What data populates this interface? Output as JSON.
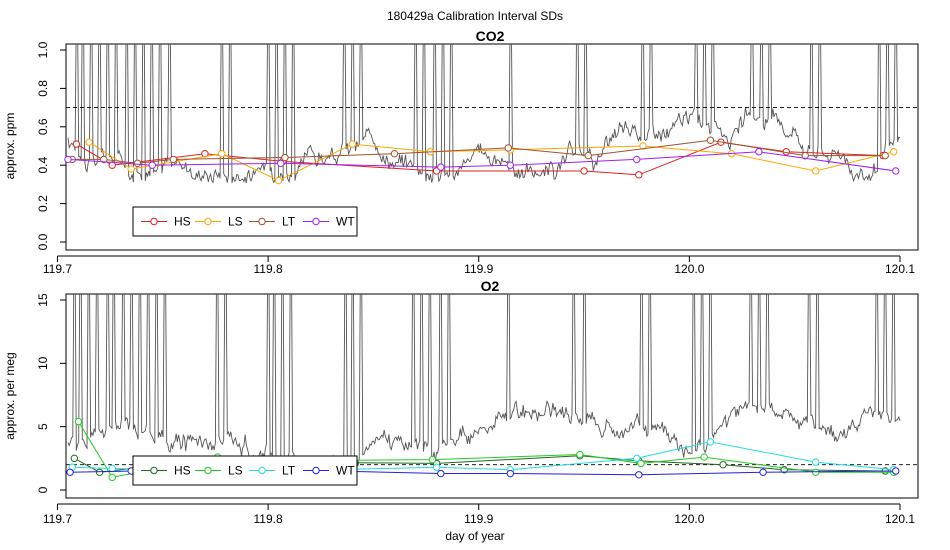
{
  "figure_title": "180429a   Calibration Interval SDs",
  "chart_data": [
    {
      "type": "line",
      "title": "CO2",
      "ylabel": "approx. ppm",
      "xlabel": "",
      "xlim": [
        119.705,
        120.1
      ],
      "ylim": [
        0.0,
        1.0
      ],
      "x_ticks": [
        "119.7",
        "119.8",
        "119.9",
        "120.0",
        "120.1"
      ],
      "y_ticks": [
        "0.0",
        "0.2",
        "0.4",
        "0.6",
        "0.8",
        "1.0"
      ],
      "threshold": 0.7,
      "legend_position": "bottom-left",
      "background_trace": {
        "color": "#555555",
        "base": 0.5,
        "spike_x": [
          119.709,
          119.712,
          119.716,
          119.72,
          119.724,
          119.728,
          119.733,
          119.737,
          119.741,
          119.745,
          119.749,
          119.753,
          119.778,
          119.782,
          119.8,
          119.804,
          119.808,
          119.812,
          119.836,
          119.84,
          119.844,
          119.87,
          119.874,
          119.879,
          119.883,
          119.887,
          119.915,
          119.947,
          119.951,
          119.978,
          119.982,
          120.003,
          120.007,
          120.011,
          120.03,
          120.034,
          120.038,
          120.058,
          120.062,
          120.09,
          120.094,
          120.098
        ]
      },
      "series": [
        {
          "name": "HS",
          "color": "#dd2222",
          "x": [
            119.709,
            119.726,
            119.77,
            119.807,
            119.88,
            119.95,
            119.976,
            120.015,
            120.046,
            120.092
          ],
          "y": [
            0.51,
            0.4,
            0.46,
            0.42,
            0.37,
            0.37,
            0.35,
            0.52,
            0.47,
            0.45
          ]
        },
        {
          "name": "LS",
          "color": "#ffa500",
          "x": [
            119.715,
            119.735,
            119.778,
            119.805,
            119.84,
            119.877,
            119.915,
            119.978,
            120.02,
            120.06,
            120.097
          ],
          "y": [
            0.52,
            0.38,
            0.46,
            0.32,
            0.51,
            0.47,
            0.48,
            0.5,
            0.46,
            0.37,
            0.47
          ]
        },
        {
          "name": "LT",
          "color": "#a0522d",
          "x": [
            119.707,
            119.722,
            119.738,
            119.755,
            119.808,
            119.86,
            119.914,
            119.952,
            120.01,
            120.055,
            120.093
          ],
          "y": [
            0.43,
            0.43,
            0.41,
            0.43,
            0.44,
            0.46,
            0.49,
            0.45,
            0.53,
            0.45,
            0.45
          ]
        },
        {
          "name": "WT",
          "color": "#a020f0",
          "x": [
            119.705,
            119.745,
            119.806,
            119.882,
            119.915,
            119.975,
            120.033,
            120.098
          ],
          "y": [
            0.43,
            0.4,
            0.41,
            0.39,
            0.4,
            0.43,
            0.47,
            0.37
          ]
        }
      ]
    },
    {
      "type": "line",
      "title": "O2",
      "ylabel": "approx. per meg",
      "xlabel": "day of year",
      "xlim": [
        119.705,
        120.1
      ],
      "ylim": [
        0,
        15
      ],
      "x_ticks": [
        "119.7",
        "119.8",
        "119.9",
        "120.0",
        "120.1"
      ],
      "y_ticks": [
        "0",
        "5",
        "10",
        "15"
      ],
      "threshold": 2,
      "legend_position": "bottom-left",
      "background_trace": {
        "color": "#555555",
        "base": 3.5,
        "spike_x": [
          119.708,
          119.711,
          119.715,
          119.719,
          119.724,
          119.727,
          119.731,
          119.735,
          119.739,
          119.743,
          119.747,
          119.751,
          119.776,
          119.78,
          119.8,
          119.803,
          119.807,
          119.811,
          119.837,
          119.84,
          119.844,
          119.869,
          119.873,
          119.877,
          119.882,
          119.886,
          119.914,
          119.945,
          119.95,
          119.977,
          119.981,
          120.002,
          120.006,
          120.01,
          120.029,
          120.033,
          120.037,
          120.057,
          120.061,
          120.089,
          120.093,
          120.097
        ]
      },
      "series": [
        {
          "name": "HS",
          "color": "#226622",
          "x": [
            119.708,
            119.72,
            119.74,
            119.806,
            119.88,
            119.948,
            119.976,
            120.016,
            120.045,
            120.093
          ],
          "y": [
            2.5,
            1.4,
            1.8,
            2.2,
            2.1,
            2.7,
            2.3,
            2.0,
            1.6,
            1.5
          ]
        },
        {
          "name": "LS",
          "color": "#22cc22",
          "x": [
            119.71,
            119.726,
            119.776,
            119.807,
            119.878,
            119.948,
            119.977,
            120.007,
            120.06,
            120.097
          ],
          "y": [
            5.4,
            1.0,
            2.6,
            2.3,
            2.4,
            2.8,
            2.1,
            2.6,
            1.4,
            1.4
          ]
        },
        {
          "name": "LT",
          "color": "#22dddd",
          "x": [
            119.707,
            119.726,
            119.807,
            119.88,
            119.915,
            119.975,
            120.01,
            120.06,
            120.097
          ],
          "y": [
            1.8,
            1.7,
            1.5,
            1.8,
            1.6,
            2.5,
            3.8,
            2.2,
            1.6
          ]
        },
        {
          "name": "WT",
          "color": "#2222dd",
          "x": [
            119.706,
            119.735,
            119.806,
            119.882,
            119.915,
            119.976,
            120.035,
            120.098
          ],
          "y": [
            1.4,
            1.5,
            1.6,
            1.3,
            1.3,
            1.2,
            1.4,
            1.5
          ]
        }
      ]
    }
  ]
}
